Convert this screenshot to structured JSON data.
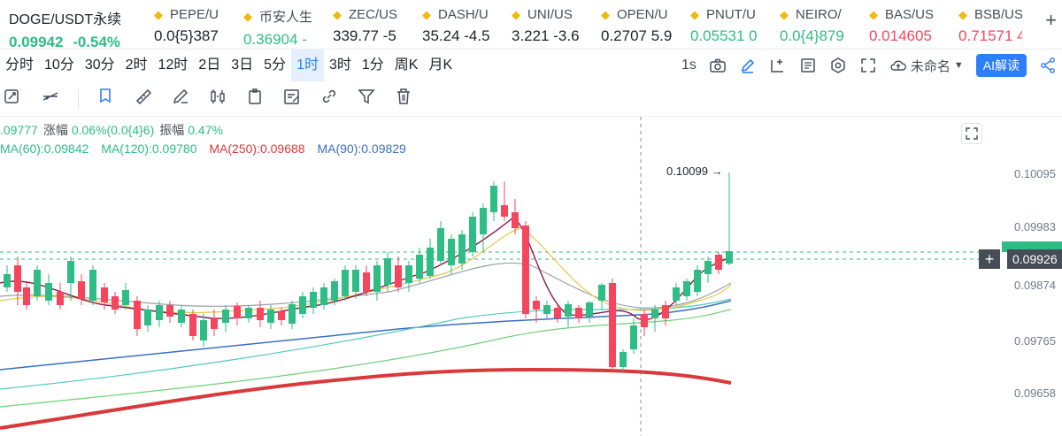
{
  "ticker": {
    "main": {
      "symbol": "DOGE/USDT永续",
      "price": "0.09942",
      "change": "-0.54%"
    },
    "items": [
      {
        "symbol": "PEPE/U",
        "price": "0.0{5}387",
        "color": "#1e2329"
      },
      {
        "symbol": "币安人生",
        "price": "0.36904 -",
        "color": "#2ebd85"
      },
      {
        "symbol": "ZEC/US",
        "price": "339.77 -5",
        "color": "#1e2329"
      },
      {
        "symbol": "DASH/U",
        "price": "35.24 -4.5",
        "color": "#1e2329"
      },
      {
        "symbol": "UNI/US",
        "price": "3.221 -3.6",
        "color": "#1e2329"
      },
      {
        "symbol": "OPEN/U",
        "price": "0.2707 5.9",
        "color": "#1e2329"
      },
      {
        "symbol": "PNUT/U",
        "price": "0.05531 0",
        "color": "#2ebd85"
      },
      {
        "symbol": "NEIRO/",
        "price": "0.0{4}879",
        "color": "#2ebd85"
      },
      {
        "symbol": "BAS/US",
        "price": "0.014605",
        "color": "#f6465d"
      },
      {
        "symbol": "BSB/US",
        "price": "0.71571 4",
        "color": "#f6465d"
      }
    ],
    "add_label": "+"
  },
  "intervals": [
    "分时",
    "10分",
    "30分",
    "2时",
    "12时",
    "2日",
    "3日",
    "5分",
    "1时",
    "3时",
    "1分",
    "周K",
    "月K"
  ],
  "active_interval": "1时",
  "toolbar_right": {
    "refresh": "1s",
    "layout_name": "未命名",
    "ai_label": "AI解读"
  },
  "info": {
    "price_fragment": ".09777",
    "change_label": "涨幅",
    "change_value": "0.06%(0.0{4}6)",
    "amp_label": "振幅",
    "amp_value": "0.47%"
  },
  "ma": [
    {
      "label": "MA(60):0.09842",
      "color": "#2ebd85"
    },
    {
      "label": "MA(120):0.09780",
      "color": "#2ebd85"
    },
    {
      "label": "MA(250):0.09688",
      "color": "#d9393b"
    },
    {
      "label": "MA(90):0.09829",
      "color": "#3a6fc4"
    }
  ],
  "axis_labels": [
    "0.10095",
    "0.09983",
    "0.09874",
    "0.09765",
    "0.09658"
  ],
  "current_price": "0.09926",
  "high_label": "0.10099 →",
  "colors": {
    "up": "#2ebd85",
    "down": "#f6465d",
    "accent": "#2d7ff9"
  }
}
